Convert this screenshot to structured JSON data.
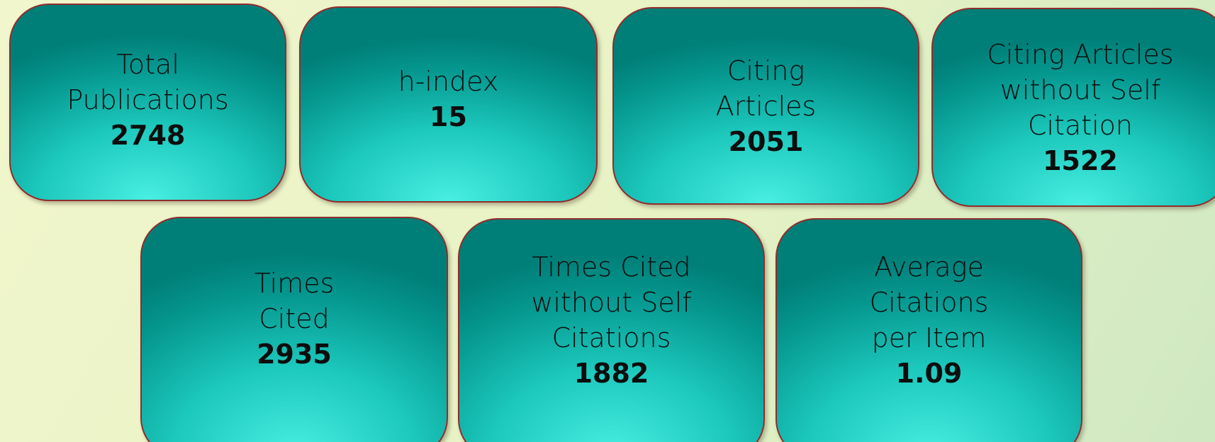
{
  "cards": [
    {
      "label": [
        "Total",
        "Publications"
      ],
      "value": 2748
    },
    {
      "label": [
        "h-index"
      ],
      "value": 15
    },
    {
      "label": [
        "Citing",
        "Articles"
      ],
      "value": 2051
    },
    {
      "label": [
        "Citing Articles",
        "without Self",
        "Citation"
      ],
      "value": 1522
    },
    {
      "label": [
        "Times",
        "Cited"
      ],
      "value": 2935
    },
    {
      "label": [
        "Times Cited",
        "without Self",
        "Citations"
      ],
      "value": 1882
    },
    {
      "label": [
        "Average",
        "Citations",
        "per Item"
      ],
      "value": 1.09
    }
  ]
}
